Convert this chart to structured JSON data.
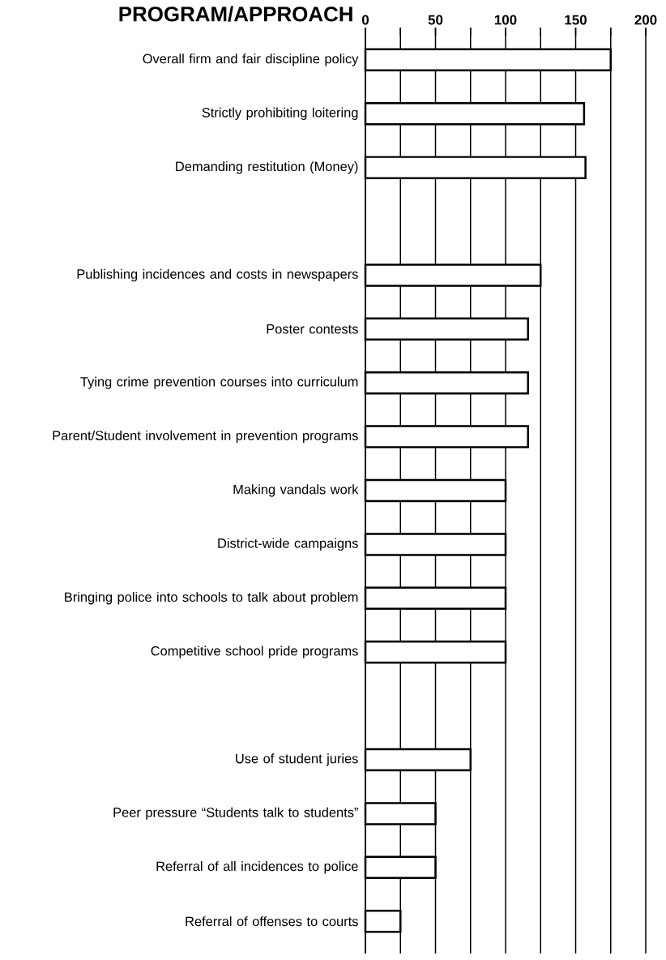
{
  "chart_data": {
    "type": "bar",
    "orientation": "horizontal",
    "title": "PROGRAM/APPROACH",
    "categories": [
      "Overall firm and fair discipline policy",
      "Strictly prohibiting loitering",
      "Demanding restitution (Money)",
      null,
      "Publishing incidences and costs in newspapers",
      "Poster contests",
      "Tying crime prevention courses into curriculum",
      "Parent/Student involvement in prevention programs",
      "Making vandals work",
      "District-wide campaigns",
      "Bringing police into schools to talk about problem",
      "Competitive school pride programs",
      null,
      "Use of student juries",
      "Peer pressure “Students talk to students”",
      "Referral of all incidences to police",
      "Referral of offenses to courts"
    ],
    "values": [
      175,
      156,
      157,
      null,
      125,
      116,
      116,
      116,
      100,
      100,
      100,
      100,
      null,
      75,
      50,
      50,
      25
    ],
    "color": "#ffffff",
    "xlim": [
      0,
      200
    ],
    "xticks": [
      0,
      {
        "value": 25,
        "label": null
      },
      50,
      {
        "value": 75,
        "label": null
      },
      100,
      {
        "value": 125,
        "label": null
      },
      150,
      {
        "value": 175,
        "label": null
      },
      200
    ],
    "grid": "x"
  }
}
